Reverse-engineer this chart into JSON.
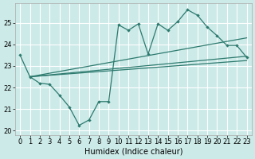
{
  "xlabel": "Humidex (Indice chaleur)",
  "ylabel": "",
  "bg_color": "#cceae8",
  "grid_color": "#ffffff",
  "line_color": "#2d7a6e",
  "xlim": [
    -0.5,
    23.5
  ],
  "ylim": [
    19.8,
    25.9
  ],
  "xticks": [
    0,
    1,
    2,
    3,
    4,
    5,
    6,
    7,
    8,
    9,
    10,
    11,
    12,
    13,
    14,
    15,
    16,
    17,
    18,
    19,
    20,
    21,
    22,
    23
  ],
  "yticks": [
    20,
    21,
    22,
    23,
    24,
    25
  ],
  "zigzag_x": [
    0,
    1,
    2,
    3,
    4,
    5,
    6,
    7,
    8,
    9,
    10,
    11,
    12,
    13,
    14,
    15,
    16,
    17,
    18,
    19,
    20,
    21,
    22,
    23
  ],
  "zigzag_y": [
    23.5,
    22.5,
    22.2,
    22.15,
    21.65,
    21.1,
    20.25,
    20.5,
    21.35,
    21.35,
    24.9,
    24.65,
    24.95,
    23.55,
    24.95,
    24.65,
    25.05,
    25.6,
    25.35,
    24.8,
    24.4,
    23.95,
    23.95,
    23.4
  ],
  "trend1_x": [
    1,
    23
  ],
  "trend1_y": [
    22.5,
    24.3
  ],
  "trend2_x": [
    1,
    23
  ],
  "trend2_y": [
    22.5,
    23.45
  ],
  "trend3_x": [
    1,
    23
  ],
  "trend3_y": [
    22.5,
    23.25
  ]
}
